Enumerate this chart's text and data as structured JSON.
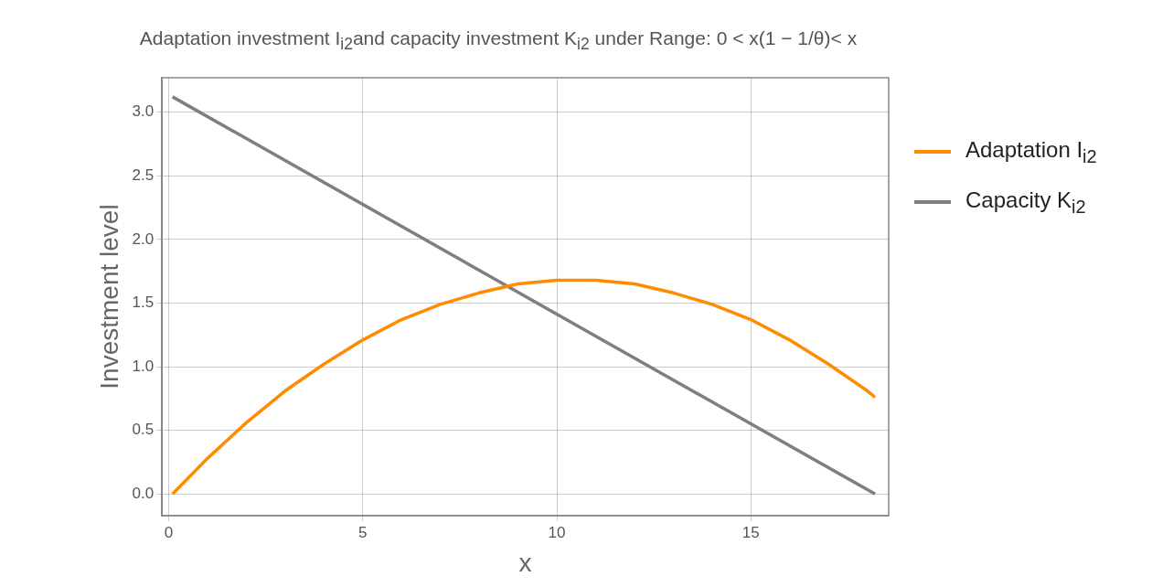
{
  "chart_data": {
    "type": "line",
    "title": "Adaptation investment I$_{i2}$and capacity investment K$_{i2}$ under Range: 0 < x(1 − 1/θ)< x",
    "xlabel": "x",
    "ylabel": "Investment level",
    "xlim": [
      -0.17,
      18.55
    ],
    "xticks": [
      0,
      5,
      10,
      15
    ],
    "ylim": [
      -0.17,
      3.27
    ],
    "yticks": [
      {
        "value": 0,
        "label": "0.0"
      },
      {
        "value": 0.5,
        "label": "0.5"
      },
      {
        "value": 1,
        "label": "1.0"
      },
      {
        "value": 1.5,
        "label": "1.5"
      },
      {
        "value": 2,
        "label": "2.0"
      },
      {
        "value": 2.5,
        "label": "2.5"
      },
      {
        "value": 3,
        "label": "3.0"
      }
    ],
    "grid": true,
    "legend": "right",
    "marker": "none",
    "line_style": "solid",
    "series": [
      {
        "name": "Adaptation I$_{i2}$",
        "color": "#ff8c00",
        "x": [
          0.1,
          1,
          2,
          3,
          4,
          5,
          6,
          7,
          8,
          9,
          10,
          10.5,
          11,
          12,
          13,
          14,
          15,
          16,
          17,
          18,
          18.2
        ],
        "values": [
          0,
          0.28,
          0.56,
          0.81,
          1.02,
          1.21,
          1.37,
          1.49,
          1.58,
          1.65,
          1.68,
          1.68,
          1.68,
          1.65,
          1.58,
          1.49,
          1.37,
          1.21,
          1.02,
          0.81,
          0.76
        ]
      },
      {
        "name": "Capacity K$_{i2}$",
        "color": "#7f7f7f",
        "x": [
          0.1,
          18.2
        ],
        "values": [
          3.12,
          0
        ]
      }
    ]
  }
}
